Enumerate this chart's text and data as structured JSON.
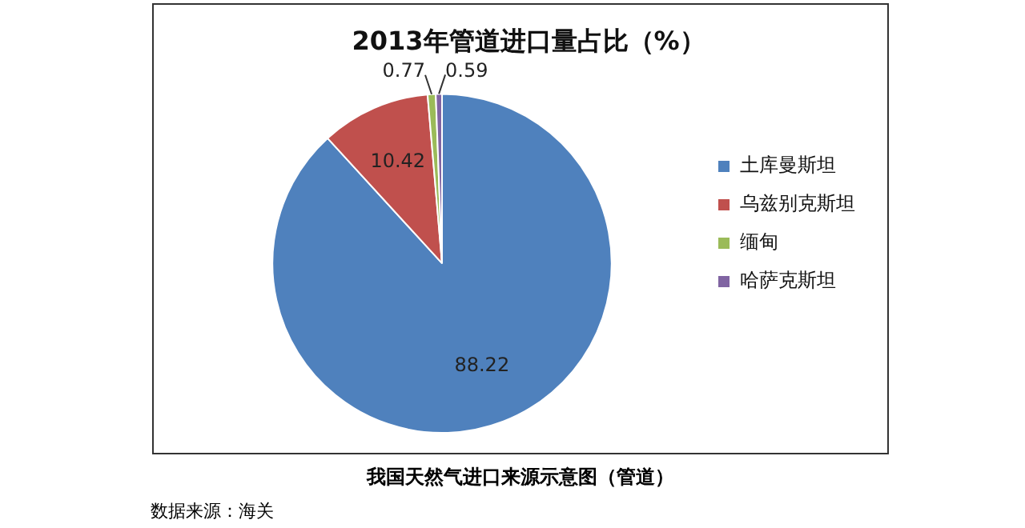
{
  "chart_data": {
    "type": "pie",
    "title": "2013年管道进口量占比（%）",
    "categories": [
      "土库曼斯坦",
      "乌兹别克斯坦",
      "缅甸",
      "哈萨克斯坦"
    ],
    "values": [
      88.22,
      10.42,
      0.77,
      0.59
    ],
    "colors": [
      "#4f81bd",
      "#c0504d",
      "#9bbb59",
      "#8064a2"
    ],
    "data_labels": true,
    "legend": "right",
    "annotations": [
      "我国天然气进口来源示意图（管道）",
      "数据来源：海关"
    ]
  }
}
